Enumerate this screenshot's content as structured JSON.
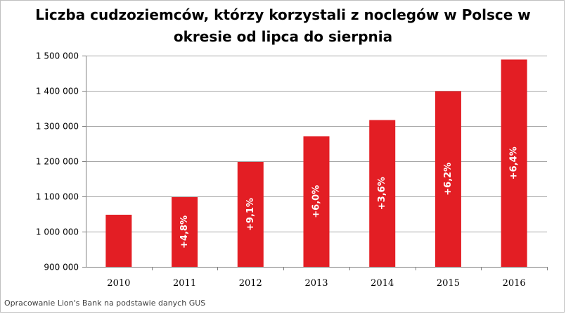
{
  "chart_data": {
    "type": "bar",
    "title": "Liczba cudzoziemców, którzy korzystali z noclegów w Polsce w okresie od lipca do sierpnia",
    "categories": [
      "2010",
      "2011",
      "2012",
      "2013",
      "2014",
      "2015",
      "2016"
    ],
    "values": [
      1048000,
      1098000,
      1198000,
      1271000,
      1317000,
      1399000,
      1489000
    ],
    "data_labels": [
      "",
      "+4,8%",
      "+9,1%",
      "+6,0%",
      "+3,6%",
      "+6,2%",
      "+6,4%"
    ],
    "ylim": [
      900000,
      1500000
    ],
    "yticks": [
      900000,
      1000000,
      1100000,
      1200000,
      1300000,
      1400000,
      1500000
    ],
    "ytick_labels": [
      "900 000",
      "1 000 000",
      "1 100 000",
      "1 200 000",
      "1 300 000",
      "1 400 000",
      "1 500 000"
    ],
    "xlabel": "",
    "ylabel": "",
    "grid": true,
    "legend": "none",
    "bar_color": "#e31e24",
    "grid_color": "#a6a6a6"
  },
  "source_note": "Opracowanie Lion's Bank na podstawie danych GUS"
}
